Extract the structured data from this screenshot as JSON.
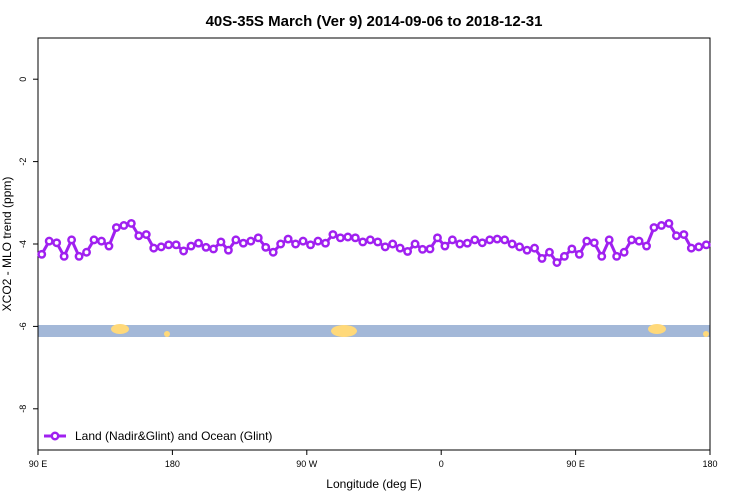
{
  "chart_data": {
    "type": "line",
    "title": "40S-35S March (Ver 9)   2014-09-06 to 2018-12-31",
    "x_label": "Longitude (deg E)",
    "y_label": "XCO2 - MLO trend (ppm)",
    "xlim": [
      90,
      540
    ],
    "ylim": [
      -9,
      1
    ],
    "xticks": [
      {
        "value": 90,
        "label": "90 E"
      },
      180,
      {
        "value": 270,
        "label": "90 W"
      },
      {
        "value": 360,
        "label": "0"
      },
      {
        "value": 450,
        "label": "90 E"
      },
      {
        "value": 540,
        "label": "180"
      }
    ],
    "yticks": [
      0,
      -2,
      -4,
      -6,
      -8
    ],
    "legend": "bottom-left",
    "x": [
      92.5,
      97.5,
      102.5,
      107.5,
      112.5,
      117.5,
      122.5,
      127.5,
      132.5,
      137.5,
      142.5,
      147.5,
      152.5,
      157.5,
      162.5,
      167.5,
      172.5,
      177.5,
      182.5,
      187.5,
      192.5,
      197.5,
      202.5,
      207.5,
      212.5,
      217.5,
      222.5,
      227.5,
      232.5,
      237.5,
      242.5,
      247.5,
      252.5,
      257.5,
      262.5,
      267.5,
      272.5,
      277.5,
      282.5,
      287.5,
      292.5,
      297.5,
      302.5,
      307.5,
      312.5,
      317.5,
      322.5,
      327.5,
      332.5,
      337.5,
      342.5,
      347.5,
      352.5,
      357.5,
      362.5,
      367.5,
      372.5,
      377.5,
      382.5,
      387.5,
      392.5,
      397.5,
      402.5,
      407.5,
      412.5,
      417.5,
      422.5,
      427.5,
      432.5,
      437.5,
      442.5,
      447.5,
      452.5,
      457.5,
      462.5,
      467.5,
      472.5,
      477.5,
      482.5,
      487.5,
      492.5,
      497.5,
      502.5,
      507.5,
      512.5,
      517.5,
      522.5,
      527.5,
      532.5,
      537.5
    ],
    "series": [
      {
        "name": "Land (Nadir&Glint) and Ocean (Glint)",
        "color": "#a020f0",
        "values": [
          -4.25,
          -3.93,
          -3.97,
          -4.3,
          -3.9,
          -4.3,
          -4.2,
          -3.9,
          -3.93,
          -4.05,
          -3.6,
          -3.55,
          -3.5,
          -3.8,
          -3.77,
          -4.1,
          -4.07,
          -4.02,
          -4.02,
          -4.17,
          -4.05,
          -3.98,
          -4.08,
          -4.12,
          -3.95,
          -4.15,
          -3.9,
          -3.98,
          -3.93,
          -3.85,
          -4.08,
          -4.2,
          -4.0,
          -3.88,
          -4.0,
          -3.93,
          -4.02,
          -3.93,
          -3.98,
          -3.77,
          -3.85,
          -3.83,
          -3.85,
          -3.95,
          -3.9,
          -3.95,
          -4.07,
          -4.0,
          -4.1,
          -4.18,
          -4.0,
          -4.13,
          -4.12,
          -3.85,
          -4.05,
          -3.9,
          -4.0,
          -3.98,
          -3.9,
          -3.97,
          -3.9,
          -3.88,
          -3.9,
          -4.0,
          -4.07,
          -4.15,
          -4.1,
          -4.35,
          -4.2,
          -4.45,
          -4.3,
          -4.12,
          -4.25,
          -3.93,
          -3.97,
          -4.3,
          -3.9,
          -4.3,
          -4.2,
          -3.9,
          -3.93,
          -4.05,
          -3.6,
          -3.55,
          -3.5,
          -3.8,
          -3.77,
          -4.1,
          -4.07,
          -4.02
        ]
      }
    ]
  }
}
